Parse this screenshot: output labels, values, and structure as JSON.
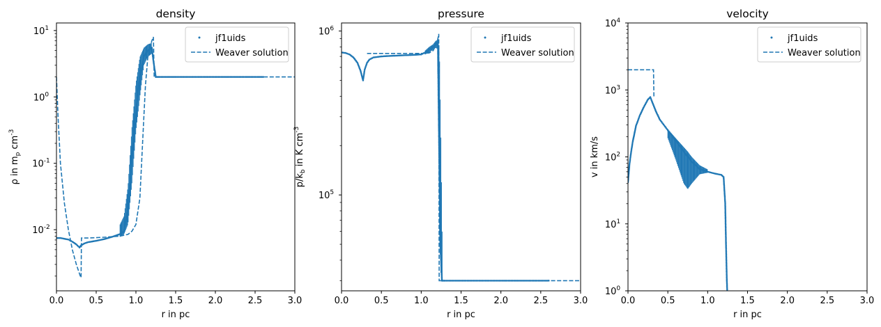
{
  "theme": {
    "series_color": "#1f77b4",
    "frame_color": "#000000"
  },
  "chart_data": [
    {
      "type": "scatter",
      "title": "density",
      "xlabel": "r in pc",
      "ylabel": "ρ in m_p cm^-3",
      "yscale": "log",
      "xlim": [
        0.0,
        3.0
      ],
      "ylim": [
        0.0012,
        13
      ],
      "x_ticks": [
        0.0,
        0.5,
        1.0,
        1.5,
        2.0,
        2.5,
        3.0
      ],
      "x_tick_labels": [
        "0.0",
        "0.5",
        "1.0",
        "1.5",
        "2.0",
        "2.5",
        "3.0"
      ],
      "y_ticks": [
        0.01,
        0.1,
        1,
        10
      ],
      "y_tick_labels": [
        "10^-2",
        "10^-1",
        "10^0",
        "10^1"
      ],
      "legend": {
        "position": "top-right",
        "entries": [
          "jf1uids",
          "Weaver solution"
        ]
      },
      "series": [
        {
          "name": "jf1uids",
          "kind": "scatter",
          "x": [
            0.0,
            0.05,
            0.1,
            0.15,
            0.2,
            0.25,
            0.29,
            0.31,
            0.35,
            0.4,
            0.5,
            0.6,
            0.7,
            0.8,
            0.85,
            0.9,
            0.95,
            1.0,
            1.05,
            1.1,
            1.15,
            1.2,
            1.22,
            1.25,
            1.3,
            1.5,
            2.0,
            2.6
          ],
          "y": [
            0.0075,
            0.0075,
            0.0073,
            0.0071,
            0.0066,
            0.006,
            0.0054,
            0.0058,
            0.0062,
            0.0065,
            0.0068,
            0.0072,
            0.0078,
            0.0086,
            0.0095,
            0.02,
            0.12,
            0.6,
            2.0,
            4.0,
            5.0,
            5.5,
            3.5,
            2.0,
            2.0,
            2.0,
            2.0,
            2.0
          ],
          "band_x": [
            0.8,
            0.85,
            0.9,
            0.95,
            1.0,
            1.05,
            1.1,
            1.15,
            1.2
          ],
          "band_low": [
            0.0078,
            0.0085,
            0.012,
            0.05,
            0.3,
            1.0,
            3.0,
            4.0,
            4.5
          ],
          "band_high": [
            0.012,
            0.016,
            0.045,
            0.35,
            1.6,
            4.0,
            5.5,
            6.2,
            6.5
          ]
        },
        {
          "name": "Weaver solution",
          "kind": "line",
          "style": "dashed",
          "x": [
            0.0,
            0.02,
            0.05,
            0.1,
            0.15,
            0.2,
            0.25,
            0.3,
            0.31,
            0.315,
            0.4,
            0.6,
            0.8,
            0.9,
            0.95,
            1.0,
            1.05,
            1.1,
            1.12,
            1.15,
            1.2,
            1.22,
            1.23,
            1.25,
            1.5,
            2.0,
            2.6,
            3.0
          ],
          "y": [
            2.0,
            0.5,
            0.1,
            0.025,
            0.01,
            0.005,
            0.003,
            0.002,
            0.0019,
            0.0075,
            0.0075,
            0.0077,
            0.008,
            0.0085,
            0.0095,
            0.012,
            0.03,
            0.5,
            1.5,
            4.0,
            7.0,
            8.0,
            2.0,
            2.0,
            2.0,
            2.0,
            2.0,
            2.0
          ]
        }
      ]
    },
    {
      "type": "scatter",
      "title": "pressure",
      "xlabel": "r in pc",
      "ylabel": "p/k_b in K cm^-3",
      "yscale": "log",
      "xlim": [
        0.0,
        3.0
      ],
      "ylim": [
        26000,
        1120000
      ],
      "x_ticks": [
        0.0,
        0.5,
        1.0,
        1.5,
        2.0,
        2.5,
        3.0
      ],
      "x_tick_labels": [
        "0.0",
        "0.5",
        "1.0",
        "1.5",
        "2.0",
        "2.5",
        "3.0"
      ],
      "y_ticks": [
        100000,
        1000000
      ],
      "y_tick_labels": [
        "10^5",
        "10^6"
      ],
      "legend": {
        "position": "top-right",
        "entries": [
          "jf1uids",
          "Weaver solution"
        ]
      },
      "series": [
        {
          "name": "jf1uids",
          "kind": "scatter",
          "x": [
            0.0,
            0.05,
            0.1,
            0.15,
            0.2,
            0.24,
            0.27,
            0.29,
            0.32,
            0.35,
            0.4,
            0.5,
            0.6,
            0.7,
            0.8,
            0.9,
            1.0,
            1.05,
            1.1,
            1.15,
            1.2,
            1.21,
            1.22,
            1.24,
            1.26,
            1.3,
            1.5,
            2.0,
            2.6
          ],
          "y": [
            740000,
            735000,
            720000,
            690000,
            640000,
            570000,
            500000,
            580000,
            640000,
            670000,
            690000,
            700000,
            705000,
            708000,
            712000,
            715000,
            720000,
            740000,
            770000,
            800000,
            850000,
            800000,
            300000,
            50000,
            30000,
            30000,
            30000,
            30000,
            30000
          ],
          "band_x": [
            1.05,
            1.1,
            1.15,
            1.18,
            1.2,
            1.22,
            1.23,
            1.25,
            1.27
          ],
          "band_low": [
            720000,
            740000,
            770000,
            790000,
            780000,
            300000,
            60000,
            30000,
            29500
          ],
          "band_high": [
            760000,
            800000,
            830000,
            870000,
            880000,
            880000,
            700000,
            180000,
            31000
          ]
        },
        {
          "name": "Weaver solution",
          "kind": "line",
          "style": "dashed",
          "x": [
            0.32,
            0.5,
            0.8,
            1.0,
            1.1,
            1.15,
            1.2,
            1.22,
            1.225,
            1.24,
            1.26,
            1.5,
            2.0,
            2.5,
            3.0
          ],
          "y": [
            730000,
            730000,
            730000,
            730000,
            735000,
            760000,
            850000,
            960000,
            30000,
            30000,
            30000,
            30000,
            30000,
            30000,
            30000
          ]
        }
      ]
    },
    {
      "type": "scatter",
      "title": "velocity",
      "xlabel": "r in pc",
      "ylabel": "v in km/s",
      "yscale": "log",
      "xlim": [
        0.0,
        3.0
      ],
      "ylim": [
        1,
        10000
      ],
      "x_ticks": [
        0.0,
        0.5,
        1.0,
        1.5,
        2.0,
        2.5,
        3.0
      ],
      "x_tick_labels": [
        "0.0",
        "0.5",
        "1.0",
        "1.5",
        "2.0",
        "2.5",
        "3.0"
      ],
      "y_ticks": [
        1,
        10,
        100,
        1000,
        10000
      ],
      "y_tick_labels": [
        "10^0",
        "10^1",
        "10^2",
        "10^3",
        "10^4"
      ],
      "legend": {
        "position": "top-right",
        "entries": [
          "jf1uids",
          "Weaver solution"
        ]
      },
      "series": [
        {
          "name": "jf1uids",
          "kind": "scatter",
          "x": [
            0.0,
            0.02,
            0.04,
            0.06,
            0.08,
            0.1,
            0.15,
            0.2,
            0.25,
            0.28,
            0.3,
            0.35,
            0.4,
            0.5,
            0.6,
            0.7,
            0.8,
            0.9,
            1.0,
            1.1,
            1.17,
            1.2,
            1.22,
            1.23,
            1.24,
            1.245
          ],
          "y": [
            42,
            80,
            120,
            170,
            220,
            290,
            420,
            560,
            720,
            780,
            680,
            480,
            360,
            250,
            175,
            120,
            85,
            66,
            60,
            56,
            54,
            50,
            20,
            5,
            1.5,
            1.0
          ],
          "band_x": [
            0.5,
            0.6,
            0.7,
            0.75,
            0.8,
            0.9,
            1.0
          ],
          "band_low": [
            190,
            90,
            40,
            33,
            40,
            55,
            58
          ],
          "band_high": [
            260,
            190,
            140,
            120,
            100,
            75,
            65
          ]
        },
        {
          "name": "Weaver solution",
          "kind": "line",
          "style": "dashed",
          "x": [
            0.0,
            0.32,
            0.325
          ],
          "y": [
            2000,
            2000,
            780
          ]
        }
      ]
    }
  ]
}
